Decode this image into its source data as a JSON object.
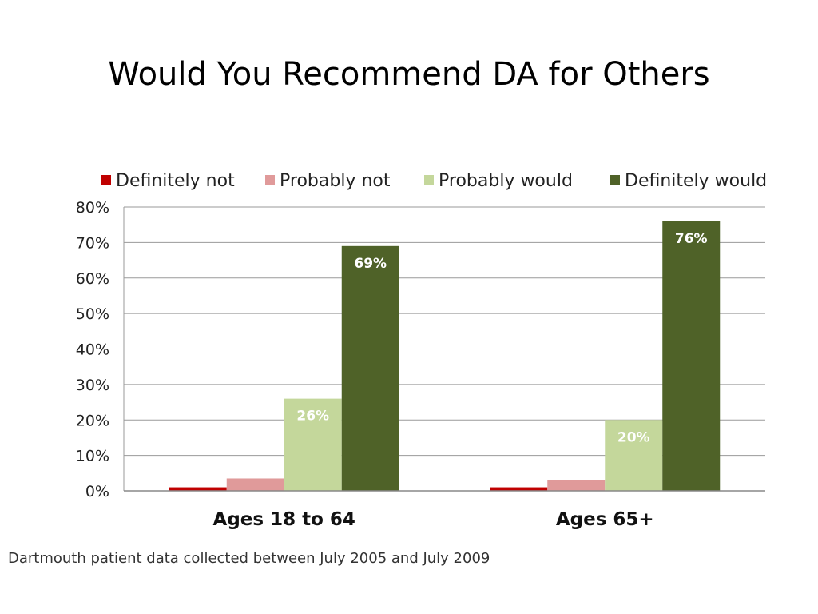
{
  "slide": {
    "title": "Would You Recommend DA for Others",
    "footnote": "Dartmouth patient data collected between July 2005 and July 2009"
  },
  "chart_data": {
    "type": "bar",
    "title": "",
    "xlabel": "",
    "ylabel": "",
    "categories": [
      "Ages 18 to 64",
      "Ages 65+"
    ],
    "series": [
      {
        "name": "Definitely not",
        "color": "#c00000",
        "values": [
          1,
          1
        ],
        "labels": [
          null,
          null
        ],
        "label_color": null
      },
      {
        "name": "Probably not",
        "color": "#e09a9a",
        "values": [
          3.5,
          3
        ],
        "labels": [
          null,
          null
        ],
        "label_color": null
      },
      {
        "name": "Probably would",
        "color": "#c4d79b",
        "values": [
          26,
          20
        ],
        "labels": [
          "26%",
          "20%"
        ],
        "label_color": "#ffffff"
      },
      {
        "name": "Definitely would",
        "color": "#4f6228",
        "values": [
          69,
          76
        ],
        "labels": [
          "69%",
          "76%"
        ],
        "label_color": "#ffffff"
      }
    ],
    "ylim": [
      0,
      80
    ],
    "yticks": [
      "0%",
      "10%",
      "20%",
      "30%",
      "40%",
      "50%",
      "60%",
      "70%",
      "80%"
    ],
    "grid": true,
    "legend_position": "top"
  }
}
